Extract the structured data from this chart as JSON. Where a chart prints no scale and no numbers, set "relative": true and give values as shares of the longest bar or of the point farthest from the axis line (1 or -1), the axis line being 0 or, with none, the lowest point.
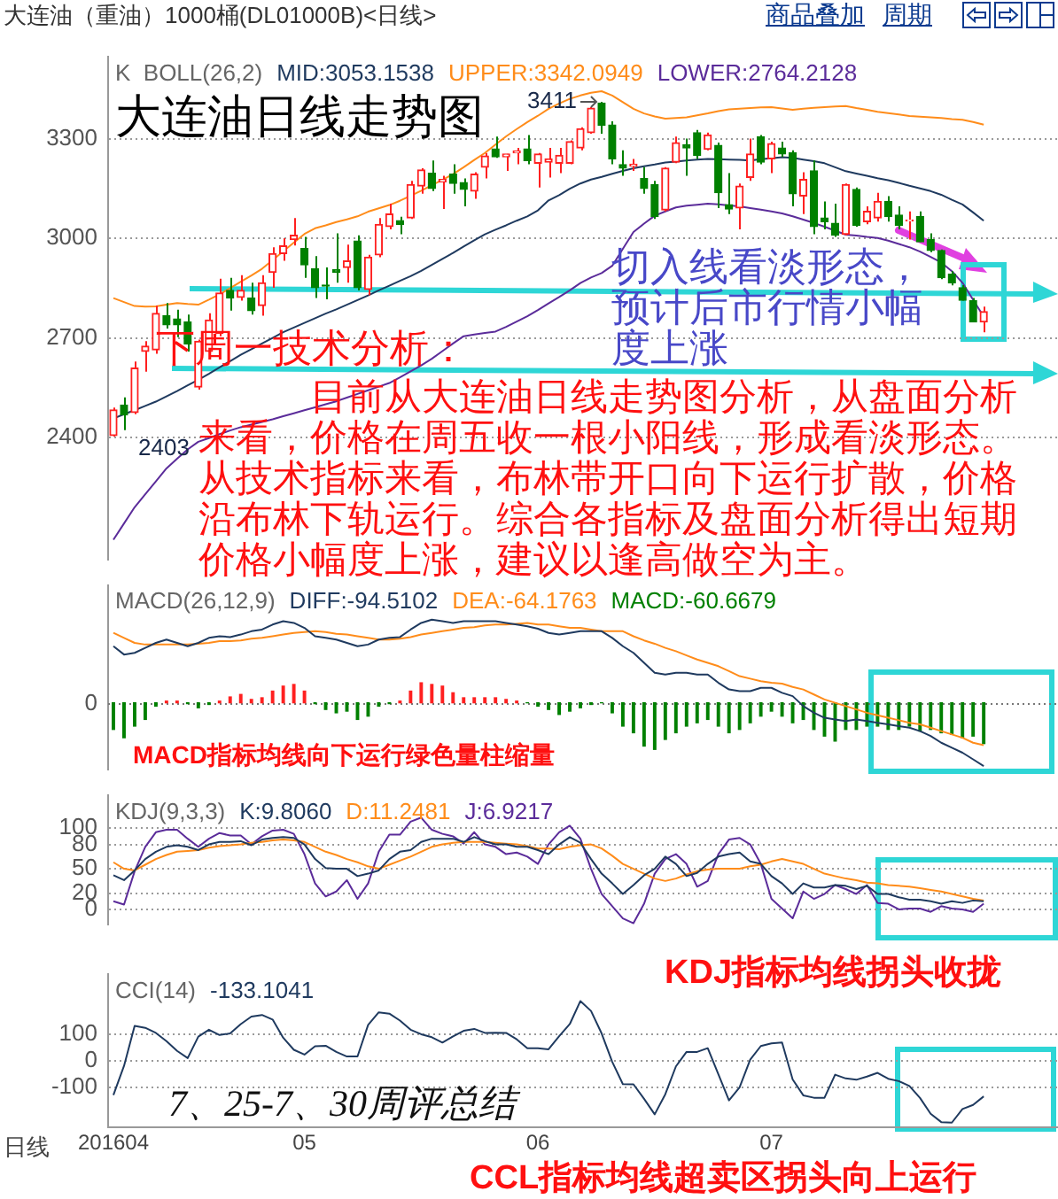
{
  "chart_data": [
    {
      "type": "candlestick",
      "title": "大连油日线走势图",
      "subtitle": "K  BOLL(26,2)",
      "categories": [
        "201604",
        null,
        null,
        null,
        null,
        null,
        null,
        null,
        null,
        null,
        null,
        null,
        null,
        null,
        null,
        null,
        null,
        null,
        "05",
        null,
        null,
        null,
        null,
        null,
        null,
        null,
        null,
        null,
        null,
        null,
        null,
        null,
        null,
        null,
        null,
        null,
        null,
        null,
        null,
        null,
        "06",
        null,
        null,
        null,
        null,
        null,
        null,
        null,
        null,
        null,
        null,
        null,
        null,
        null,
        null,
        null,
        null,
        null,
        null,
        null,
        null,
        null,
        "07",
        null,
        null,
        null,
        null,
        null,
        null,
        null,
        null,
        null,
        null,
        null,
        null,
        null,
        null,
        null,
        null,
        null,
        null,
        null,
        null
      ],
      "ohlc": [
        [
          2406,
          2490,
          2403,
          2483
        ],
        [
          2498,
          2521,
          2422,
          2468
        ],
        [
          2475,
          2629,
          2470,
          2609
        ],
        [
          2659,
          2690,
          2598,
          2675
        ],
        [
          2664,
          2797,
          2652,
          2774
        ],
        [
          2767,
          2805,
          2728,
          2739
        ],
        [
          2757,
          2785,
          2702,
          2739
        ],
        [
          2748,
          2770,
          2659,
          2682
        ],
        [
          2552,
          2695,
          2544,
          2690
        ],
        [
          2659,
          2774,
          2644,
          2754
        ],
        [
          2713,
          2878,
          2705,
          2835
        ],
        [
          2843,
          2881,
          2782,
          2820
        ],
        [
          2822,
          2889,
          2812,
          2843
        ],
        [
          2820,
          2866,
          2770,
          2782
        ],
        [
          2797,
          2889,
          2767,
          2866
        ],
        [
          2897,
          2973,
          2851,
          2954
        ],
        [
          2954,
          3000,
          2932,
          2977
        ],
        [
          2996,
          3061,
          2978,
          3009
        ],
        [
          2969,
          3004,
          2881,
          2920
        ],
        [
          2908,
          2946,
          2820,
          2851
        ],
        [
          2859,
          2912,
          2816,
          2856
        ],
        [
          2905,
          3015,
          2866,
          2897
        ],
        [
          2912,
          2981,
          2866,
          2932
        ],
        [
          2992,
          3009,
          2843,
          2851
        ],
        [
          2846,
          2950,
          2828,
          2943
        ],
        [
          2950,
          3061,
          2943,
          3042
        ],
        [
          3035,
          3104,
          3027,
          3073
        ],
        [
          3053,
          3065,
          3012,
          3042
        ],
        [
          3061,
          3173,
          3058,
          3162
        ],
        [
          3157,
          3211,
          3134,
          3206
        ],
        [
          3196,
          3234,
          3142,
          3150
        ],
        [
          3170,
          3188,
          3088,
          3177
        ],
        [
          3193,
          3223,
          3134,
          3165
        ],
        [
          3168,
          3180,
          3096,
          3147
        ],
        [
          3142,
          3199,
          3119,
          3193
        ],
        [
          3214,
          3257,
          3180,
          3248
        ],
        [
          3269,
          3306,
          3242,
          3245
        ],
        [
          3245,
          3254,
          3203,
          3254
        ],
        [
          3257,
          3272,
          3223,
          3263
        ],
        [
          3269,
          3311,
          3223,
          3234
        ],
        [
          3226,
          3257,
          3153,
          3254
        ],
        [
          3229,
          3272,
          3183,
          3239
        ],
        [
          3226,
          3272,
          3196,
          3250
        ],
        [
          3226,
          3295,
          3223,
          3291
        ],
        [
          3272,
          3334,
          3265,
          3330
        ],
        [
          3318,
          3395,
          3315,
          3392
        ],
        [
          3407,
          3411,
          3315,
          3341
        ],
        [
          3341,
          3352,
          3223,
          3239
        ],
        [
          3222,
          3265,
          3188,
          3211
        ],
        [
          3217,
          3239,
          3203,
          3223
        ],
        [
          3180,
          3214,
          3134,
          3150
        ],
        [
          3162,
          3173,
          3058,
          3065
        ],
        [
          3085,
          3214,
          3081,
          3211
        ],
        [
          3229,
          3306,
          3226,
          3288
        ],
        [
          3282,
          3300,
          3188,
          3272
        ],
        [
          3318,
          3326,
          3239,
          3249
        ],
        [
          3268,
          3318,
          3265,
          3311
        ],
        [
          3280,
          3288,
          3091,
          3137
        ],
        [
          3101,
          3196,
          3073,
          3088
        ],
        [
          3091,
          3165,
          3027,
          3157
        ],
        [
          3183,
          3300,
          3173,
          3254
        ],
        [
          3306,
          3311,
          3223,
          3229
        ],
        [
          3239,
          3291,
          3196,
          3285
        ],
        [
          3272,
          3291,
          3245,
          3254
        ],
        [
          3257,
          3265,
          3096,
          3134
        ],
        [
          3127,
          3199,
          3073,
          3177
        ],
        [
          3203,
          3234,
          3012,
          3035
        ],
        [
          3061,
          3111,
          3027,
          3050
        ],
        [
          3045,
          3104,
          3004,
          3009
        ],
        [
          3012,
          3165,
          3009,
          3162
        ],
        [
          3147,
          3153,
          3035,
          3039
        ],
        [
          3050,
          3096,
          3042,
          3081
        ],
        [
          3061,
          3137,
          3050,
          3111
        ],
        [
          3111,
          3127,
          3050,
          3065
        ],
        [
          3070,
          3096,
          3027,
          3039
        ],
        [
          3052,
          3081,
          2996,
          3055
        ],
        [
          3065,
          3081,
          2989,
          2989
        ],
        [
          2996,
          3015,
          2958,
          2963
        ],
        [
          2963,
          2966,
          2877,
          2881
        ],
        [
          2892,
          2901,
          2858,
          2866
        ],
        [
          2851,
          2859,
          2812,
          2813
        ],
        [
          2812,
          2820,
          2748,
          2748
        ],
        [
          2748,
          2794,
          2717,
          2779
        ]
      ],
      "colors": [
        "#ff2020",
        "#008000",
        "#ff2020",
        "#ff2020",
        "#ff2020",
        "#008000",
        "#008000",
        "#008000",
        "#ff2020",
        "#ff2020",
        "#ff2020",
        "#008000",
        "#ff2020",
        "#008000",
        "#ff2020",
        "#ff2020",
        "#ff2020",
        "#ff2020",
        "#008000",
        "#008000",
        "#008000",
        "#008000",
        "#ff2020",
        "#008000",
        "#ff2020",
        "#ff2020",
        "#ff2020",
        "#008000",
        "#ff2020",
        "#ff2020",
        "#008000",
        "#ff2020",
        "#008000",
        "#008000",
        "#ff2020",
        "#ff2020",
        "#008000",
        "#ff2020",
        "#ff2020",
        "#008000",
        "#ff2020",
        "#ff2020",
        "#ff2020",
        "#ff2020",
        "#ff2020",
        "#ff2020",
        "#008000",
        "#008000",
        "#008000",
        "#ff2020",
        "#008000",
        "#008000",
        "#ff2020",
        "#ff2020",
        "#008000",
        "#008000",
        "#ff2020",
        "#008000",
        "#008000",
        "#ff2020",
        "#ff2020",
        "#008000",
        "#ff2020",
        "#008000",
        "#008000",
        "#ff2020",
        "#008000",
        "#008000",
        "#008000",
        "#ff2020",
        "#008000",
        "#ff2020",
        "#ff2020",
        "#008000",
        "#008000",
        "#ff2020",
        "#008000",
        "#008000",
        "#008000",
        "#008000",
        "#008000",
        "#008000",
        "#ff2020"
      ],
      "series": [
        {
          "name": "MID:3053.1538",
          "type": "line",
          "color": "#1f3a5f",
          "values": [
            2457,
            2470,
            2482,
            2495,
            2508,
            2524,
            2540,
            2557,
            2574,
            2592,
            2611,
            2630,
            2649,
            2666,
            2683,
            2700,
            2717,
            2731,
            2745,
            2759,
            2773,
            2786,
            2800,
            2814,
            2828,
            2843,
            2857,
            2872,
            2886,
            2902,
            2920,
            2938,
            2956,
            2975,
            2994,
            3012,
            3026,
            3039,
            3053,
            3066,
            3084,
            3114,
            3130,
            3149,
            3165,
            3177,
            3185,
            3194,
            3203,
            3211,
            3217,
            3222,
            3228,
            3231,
            3234,
            3237,
            3239,
            3238,
            3237,
            3236,
            3234,
            3238,
            3241,
            3244,
            3242,
            3237,
            3232,
            3226,
            3214,
            3202,
            3195,
            3188,
            3181,
            3175,
            3167,
            3158,
            3150,
            3142,
            3131,
            3116,
            3102,
            3078,
            3053
          ]
        },
        {
          "name": "UPPER:3342.0949",
          "type": "line",
          "color": "#ff8c1a",
          "values": [
            2820,
            2808,
            2796,
            2794,
            2795,
            2800,
            2805,
            2802,
            2800,
            2815,
            2831,
            2850,
            2869,
            2888,
            2908,
            2934,
            2961,
            2987,
            3013,
            3030,
            3039,
            3049,
            3057,
            3066,
            3080,
            3090,
            3100,
            3113,
            3128,
            3143,
            3160,
            3176,
            3193,
            3214,
            3236,
            3257,
            3282,
            3307,
            3329,
            3350,
            3369,
            3390,
            3406,
            3420,
            3430,
            3438,
            3443,
            3430,
            3410,
            3390,
            3376,
            3367,
            3360,
            3362,
            3364,
            3370,
            3376,
            3383,
            3388,
            3390,
            3392,
            3394,
            3395,
            3391,
            3387,
            3390,
            3393,
            3395,
            3397,
            3398,
            3392,
            3387,
            3381,
            3377,
            3373,
            3368,
            3366,
            3364,
            3362,
            3359,
            3357,
            3350,
            3342
          ]
        },
        {
          "name": "LOWER:2764.2128",
          "type": "line",
          "color": "#5b2c9a",
          "values": [
            2092,
            2141,
            2190,
            2229,
            2268,
            2307,
            2336,
            2364,
            2387,
            2398,
            2410,
            2421,
            2431,
            2439,
            2447,
            2455,
            2464,
            2473,
            2482,
            2491,
            2500,
            2509,
            2520,
            2531,
            2542,
            2553,
            2564,
            2581,
            2599,
            2617,
            2637,
            2660,
            2683,
            2705,
            2710,
            2715,
            2719,
            2733,
            2749,
            2765,
            2784,
            2804,
            2823,
            2843,
            2865,
            2882,
            2895,
            2917,
            2968,
            3019,
            3044,
            3068,
            3081,
            3093,
            3098,
            3101,
            3104,
            3102,
            3099,
            3096,
            3091,
            3086,
            3081,
            3075,
            3066,
            3056,
            3046,
            3035,
            3023,
            3011,
            3008,
            3004,
            3001,
            2993,
            2983,
            2973,
            2960,
            2944,
            2927,
            2901,
            2866,
            2815,
            2764
          ]
        }
      ],
      "ylim": [
        2031,
        3548
      ],
      "yticks": [
        2400,
        2700,
        3000,
        3300
      ],
      "grid": "y",
      "legend": "top left",
      "tick_labels": "y",
      "annotations": [
        "大连油（重油）1000桶(DL01000B)<日线>",
        "商品叠加",
        "周期",
        {
          "text": "3411",
          "y": 3411
        },
        "2403",
        "下周一技术分析：",
        "目前从大连油日线走势图分析，从盘面分析来看，价格在周五收一根小阳线，形成看淡形态。从技术指标来看，布林带开口向下运行扩散，价格沿布林下轨运行。综合各指标及盘面分析得出短期价格小幅度上涨，建议以逢高做空为主。",
        "切入线看淡形态，预计后市行情小幅度上涨"
      ]
    },
    {
      "type": "bar",
      "title": "MACD(26,12,9)",
      "relative": true,
      "categories": [
        "201604",
        null,
        null,
        null,
        null,
        null,
        null,
        null,
        null,
        null,
        null,
        null,
        null,
        null,
        null,
        null,
        null,
        null,
        "05",
        null,
        null,
        null,
        null,
        null,
        null,
        null,
        null,
        null,
        null,
        null,
        null,
        null,
        null,
        null,
        null,
        null,
        null,
        null,
        null,
        null,
        "06",
        null,
        null,
        null,
        null,
        null,
        null,
        null,
        null,
        null,
        null,
        null,
        null,
        null,
        null,
        null,
        null,
        null,
        null,
        null,
        null,
        null,
        "07",
        null,
        null,
        null,
        null,
        null,
        null,
        null,
        null,
        null,
        null,
        null,
        null,
        null,
        null,
        null,
        null,
        null,
        null,
        null,
        null
      ],
      "series": [
        {
          "name": "DIFF:-94.5102",
          "type": "line",
          "color": "#1f3a5f",
          "values": [
            0.68,
            0.58,
            0.6,
            0.66,
            0.72,
            0.76,
            0.72,
            0.68,
            0.72,
            0.78,
            0.8,
            0.79,
            0.82,
            0.86,
            0.88,
            0.94,
            0.98,
            0.96,
            0.9,
            0.8,
            0.78,
            0.76,
            0.72,
            0.68,
            0.7,
            0.76,
            0.78,
            0.79,
            0.88,
            0.96,
            1,
            0.98,
            0.96,
            0.98,
            0.98,
            0.98,
            0.98,
            0.96,
            0.94,
            0.92,
            0.89,
            0.84,
            0.82,
            0.84,
            0.86,
            0.86,
            0.86,
            0.78,
            0.68,
            0.6,
            0.48,
            0.36,
            0.34,
            0.36,
            0.36,
            0.34,
            0.34,
            0.24,
            0.16,
            0.14,
            0.14,
            0.18,
            0.18,
            0.12,
            0.08,
            -0.04,
            -0.12,
            -0.18,
            -0.2,
            -0.22,
            -0.2,
            -0.22,
            -0.24,
            -0.26,
            -0.28,
            -0.3,
            -0.34,
            -0.4,
            -0.48,
            -0.54,
            -0.6,
            -0.68,
            -0.76
          ]
        },
        {
          "name": "DEA:-64.1763",
          "type": "line",
          "color": "#ff8c1a",
          "values": [
            0.84,
            0.78,
            0.72,
            0.7,
            0.7,
            0.7,
            0.7,
            0.7,
            0.71,
            0.72,
            0.74,
            0.74,
            0.75,
            0.77,
            0.78,
            0.8,
            0.82,
            0.84,
            0.85,
            0.86,
            0.85,
            0.83,
            0.82,
            0.8,
            0.78,
            0.76,
            0.76,
            0.77,
            0.79,
            0.82,
            0.84,
            0.86,
            0.88,
            0.9,
            0.91,
            0.93,
            0.94,
            0.94,
            0.95,
            0.96,
            0.94,
            0.94,
            0.92,
            0.9,
            0.9,
            0.88,
            0.86,
            0.86,
            0.86,
            0.8,
            0.75,
            0.71,
            0.66,
            0.62,
            0.57,
            0.52,
            0.48,
            0.44,
            0.38,
            0.32,
            0.29,
            0.26,
            0.24,
            0.23,
            0.19,
            0.16,
            0.1,
            0.04,
            0,
            -0.04,
            -0.08,
            -0.12,
            -0.15,
            -0.18,
            -0.21,
            -0.24,
            -0.26,
            -0.3,
            -0.34,
            -0.38,
            -0.42,
            -0.48,
            -0.51
          ]
        },
        {
          "name": "MACD:-60.6679",
          "type": "bar",
          "values": [
            -0.32,
            -0.42,
            -0.28,
            -0.2,
            -0.04,
            0.02,
            0.02,
            -0.01,
            -0.06,
            -0.02,
            0.02,
            0.07,
            0.1,
            0.04,
            0.06,
            0.14,
            0.2,
            0.22,
            0.14,
            -0.01,
            -0.08,
            -0.12,
            -0.1,
            -0.2,
            -0.16,
            -0.04,
            -0.01,
            0.02,
            0.14,
            0.24,
            0.22,
            0.2,
            0.12,
            0.06,
            0.06,
            0.06,
            0.06,
            0.04,
            0.02,
            0,
            -0.04,
            -0.08,
            -0.14,
            -0.1,
            -0.06,
            -0.02,
            0,
            -0.12,
            -0.28,
            -0.36,
            -0.52,
            -0.56,
            -0.44,
            -0.36,
            -0.28,
            -0.24,
            -0.2,
            -0.28,
            -0.36,
            -0.32,
            -0.24,
            -0.16,
            -0.1,
            -0.16,
            -0.24,
            -0.2,
            -0.32,
            -0.4,
            -0.46,
            -0.32,
            -0.32,
            -0.28,
            -0.28,
            -0.32,
            -0.32,
            -0.28,
            -0.34,
            -0.32,
            -0.36,
            -0.38,
            -0.42,
            -0.4,
            -0.49
          ],
          "colors": [
            "#008000",
            "#008000",
            "#008000",
            "#008000",
            "#008000",
            "#ff2020",
            "#ff2020",
            "#008000",
            "#008000",
            "#008000",
            "#ff2020",
            "#ff2020",
            "#ff2020",
            "#ff2020",
            "#ff2020",
            "#ff2020",
            "#ff2020",
            "#ff2020",
            "#ff2020",
            "#008000",
            "#008000",
            "#008000",
            "#008000",
            "#008000",
            "#008000",
            "#008000",
            "#008000",
            "#ff2020",
            "#ff2020",
            "#ff2020",
            "#ff2020",
            "#ff2020",
            "#ff2020",
            "#ff2020",
            "#ff2020",
            "#ff2020",
            "#ff2020",
            "#ff2020",
            "#ff2020",
            "#008000",
            "#008000",
            "#008000",
            "#008000",
            "#008000",
            "#008000",
            "#008000",
            "#008000",
            "#008000",
            "#008000",
            "#008000",
            "#008000",
            "#008000",
            "#008000",
            "#008000",
            "#008000",
            "#008000",
            "#008000",
            "#008000",
            "#008000",
            "#008000",
            "#008000",
            "#008000",
            "#008000",
            "#008000",
            "#008000",
            "#008000",
            "#008000",
            "#008000",
            "#008000",
            "#008000",
            "#008000",
            "#008000",
            "#008000",
            "#008000",
            "#008000",
            "#008000",
            "#008000",
            "#008000",
            "#008000",
            "#008000",
            "#008000",
            "#008000",
            "#008000"
          ]
        }
      ],
      "ref_lines": [
        {
          "axis": "y",
          "value": 0,
          "label": "0",
          "line_style": "dotted"
        }
      ],
      "legend": "top left",
      "tick_labels": "y",
      "annotations": [
        "MACD指标均线向下运行绿色量柱缩量"
      ]
    },
    {
      "type": "line",
      "title": "KDJ(9,3,3)",
      "categories": [
        "201604",
        null,
        null,
        null,
        null,
        null,
        null,
        null,
        null,
        null,
        null,
        null,
        null,
        null,
        null,
        null,
        null,
        null,
        "05",
        null,
        null,
        null,
        null,
        null,
        null,
        null,
        null,
        null,
        null,
        null,
        null,
        null,
        null,
        null,
        null,
        null,
        null,
        null,
        null,
        null,
        "06",
        null,
        null,
        null,
        null,
        null,
        null,
        null,
        null,
        null,
        null,
        null,
        null,
        null,
        null,
        null,
        null,
        null,
        null,
        null,
        null,
        null,
        "07",
        null,
        null,
        null,
        null,
        null,
        null,
        null,
        null,
        null,
        null,
        null,
        null,
        null,
        null,
        null,
        null,
        null,
        null,
        null,
        null
      ],
      "series": [
        {
          "name": "K:9.8060",
          "color": "#1f3a5f",
          "values": [
            42,
            36,
            48,
            62,
            71,
            77,
            79,
            77,
            73,
            80,
            83,
            83,
            84,
            79,
            86,
            88,
            89,
            88,
            80,
            62,
            51,
            50,
            50,
            41,
            44,
            48,
            62,
            71,
            73,
            83,
            87,
            87,
            87,
            83,
            89,
            84,
            80,
            80,
            77,
            77,
            73,
            68,
            80,
            89,
            82,
            62,
            44,
            32,
            19,
            30,
            42,
            50,
            65,
            56,
            41,
            45,
            56,
            65,
            68,
            70,
            59,
            56,
            41,
            32,
            19,
            32,
            27,
            27,
            30,
            29,
            25,
            29,
            19,
            19,
            15,
            12,
            12,
            10,
            7,
            10,
            8,
            11,
            10
          ]
        },
        {
          "name": "D:11.2481",
          "color": "#ff8c1a",
          "values": [
            58,
            50,
            48,
            55,
            62,
            67,
            71,
            72,
            73,
            76,
            78,
            79,
            80,
            82,
            83,
            85,
            86,
            85,
            83,
            77,
            71,
            67,
            62,
            58,
            53,
            50,
            55,
            60,
            65,
            71,
            77,
            80,
            82,
            83,
            83,
            83,
            82,
            81,
            80,
            78,
            75,
            75,
            74,
            77,
            79,
            80,
            75,
            66,
            56,
            50,
            44,
            38,
            35,
            38,
            43,
            47,
            49,
            50,
            50,
            50,
            53,
            55,
            59,
            62,
            59,
            56,
            50,
            44,
            41,
            38,
            36,
            33,
            32,
            30,
            29,
            28,
            26,
            24,
            22,
            19,
            16,
            13,
            11
          ]
        },
        {
          "name": "J:6.9217",
          "color": "#5b2c9a",
          "values": [
            10,
            6,
            47,
            77,
            95,
            98,
            98,
            87,
            77,
            87,
            94,
            91,
            91,
            80,
            90,
            97,
            98,
            93,
            68,
            32,
            16,
            22,
            36,
            13,
            32,
            71,
            92,
            92,
            108,
            113,
            98,
            93,
            90,
            81,
            95,
            80,
            77,
            68,
            70,
            65,
            56,
            80,
            95,
            103,
            87,
            50,
            19,
            4,
            -11,
            -17,
            7,
            44,
            62,
            68,
            56,
            28,
            35,
            68,
            86,
            88,
            80,
            56,
            13,
            1,
            -11,
            22,
            13,
            19,
            30,
            25,
            19,
            30,
            8,
            7,
            0,
            1,
            1,
            -3,
            4,
            1,
            0,
            -3,
            7
          ]
        }
      ],
      "ylim": [
        -19,
        141
      ],
      "yticks": [
        0,
        20,
        50,
        80,
        100
      ],
      "grid": "y",
      "legend": "top left",
      "tick_labels": "y"
    },
    {
      "type": "line",
      "title": "CCI(14)",
      "categories": [
        "201604",
        null,
        null,
        null,
        null,
        null,
        null,
        null,
        null,
        null,
        null,
        null,
        null,
        null,
        null,
        null,
        null,
        null,
        "05",
        null,
        null,
        null,
        null,
        null,
        null,
        null,
        null,
        null,
        null,
        null,
        null,
        null,
        null,
        null,
        null,
        null,
        null,
        null,
        null,
        null,
        "06",
        null,
        null,
        null,
        null,
        null,
        null,
        null,
        null,
        null,
        null,
        null,
        null,
        null,
        null,
        null,
        null,
        null,
        null,
        null,
        null,
        null,
        "07",
        null,
        null,
        null,
        null,
        null,
        null,
        null,
        null,
        null,
        null,
        null,
        null,
        null,
        null,
        null,
        null,
        null,
        null,
        null,
        null
      ],
      "series": [
        {
          "name": "-133.1041",
          "color": "#1f3a5f",
          "values": [
            -128,
            -19,
            130,
            123,
            104,
            73,
            37,
            10,
            90,
            116,
            96,
            102,
            137,
            165,
            171,
            154,
            86,
            41,
            23,
            54,
            56,
            33,
            16,
            16,
            134,
            181,
            176,
            150,
            116,
            99,
            88,
            68,
            91,
            112,
            119,
            104,
            105,
            104,
            80,
            47,
            47,
            43,
            92,
            137,
            223,
            186,
            102,
            -4,
            -87,
            -88,
            -142,
            -200,
            -125,
            -21,
            33,
            33,
            47,
            -50,
            -148,
            -99,
            4,
            55,
            65,
            68,
            -70,
            -129,
            -138,
            -138,
            -52,
            -66,
            -71,
            -59,
            -45,
            -67,
            -76,
            -94,
            -139,
            -198,
            -229,
            -231,
            -180,
            -165,
            -133
          ]
        }
      ],
      "ylim": [
        -249,
        325
      ],
      "yticks": [
        -100,
        0,
        100
      ],
      "grid": "y",
      "legend": "top left",
      "annotations": [
        "KDJ指标均线拐头收拢",
        "CCL指标均线超卖区拐头向上运行",
        "7、25-7、30周评总结",
        "日线"
      ]
    }
  ]
}
